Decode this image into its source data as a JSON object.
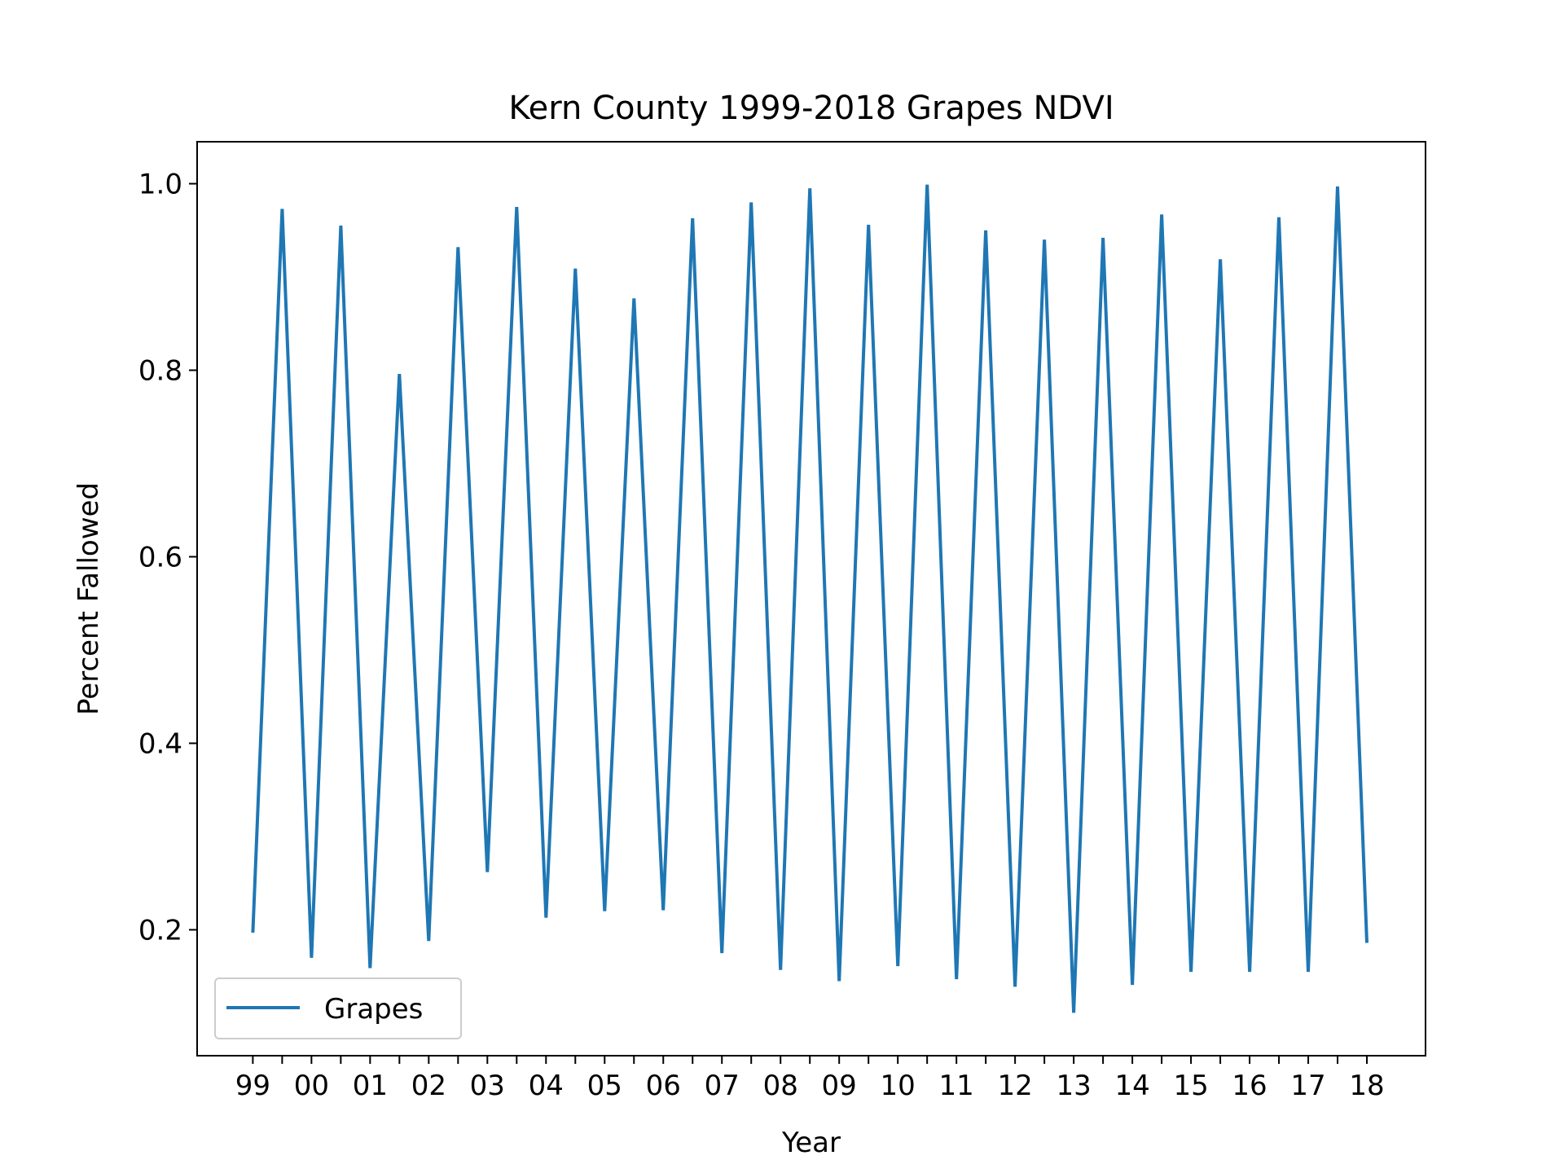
{
  "chart_data": {
    "type": "line",
    "title": "Kern County 1999-2018 Grapes NDVI",
    "xlabel": "Year",
    "ylabel": "Percent Fallowed",
    "xlim": [
      -0.95,
      20.0
    ],
    "ylim": [
      0.065,
      1.045
    ],
    "x_ticks": [
      0,
      1,
      2,
      3,
      4,
      5,
      6,
      7,
      8,
      9,
      10,
      11,
      12,
      13,
      14,
      15,
      16,
      17,
      18,
      19
    ],
    "x_tick_labels": [
      "99",
      "00",
      "01",
      "02",
      "03",
      "04",
      "05",
      "06",
      "07",
      "08",
      "09",
      "10",
      "11",
      "12",
      "13",
      "14",
      "15",
      "16",
      "17",
      "18"
    ],
    "y_ticks": [
      0.2,
      0.4,
      0.6,
      0.8,
      1.0
    ],
    "y_tick_labels": [
      "0.2",
      "0.4",
      "0.6",
      "0.8",
      "1.0"
    ],
    "grid": false,
    "legend_position": "lower-left",
    "series": [
      {
        "name": "Grapes",
        "color": "#1f77b4",
        "x": [
          0,
          0.5,
          1,
          1.5,
          2,
          2.5,
          3,
          3.5,
          4,
          4.5,
          5,
          5.5,
          6,
          6.5,
          7,
          7.5,
          8,
          8.5,
          9,
          9.5,
          10,
          10.5,
          11,
          11.5,
          12,
          12.5,
          13,
          13.5,
          14,
          14.5,
          15,
          15.5,
          16,
          16.5,
          17,
          17.5,
          18,
          18.5,
          19
        ],
        "values": [
          0.197,
          0.973,
          0.17,
          0.955,
          0.159,
          0.796,
          0.188,
          0.932,
          0.262,
          0.975,
          0.213,
          0.909,
          0.22,
          0.877,
          0.221,
          0.963,
          0.175,
          0.98,
          0.157,
          0.995,
          0.145,
          0.956,
          0.161,
          0.999,
          0.147,
          0.95,
          0.139,
          0.94,
          0.111,
          0.942,
          0.141,
          0.967,
          0.155,
          0.919,
          0.155,
          0.964,
          0.155,
          0.997,
          0.186
        ]
      }
    ]
  }
}
